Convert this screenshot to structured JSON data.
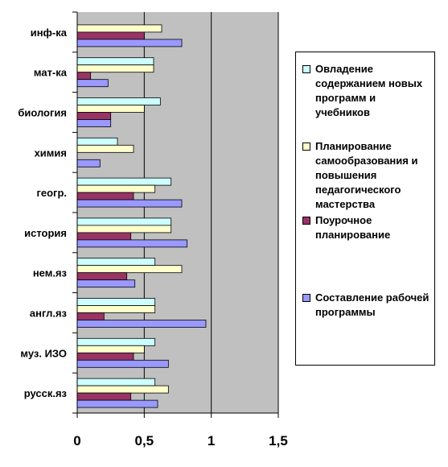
{
  "chart_data": {
    "type": "bar",
    "orientation": "horizontal",
    "categories": [
      "инф-ка",
      "мат-ка",
      "биология",
      "химия",
      "геогр.",
      "история",
      "нем.яз",
      "англ.яз",
      "муз. ИЗО",
      "русск.яз"
    ],
    "series": [
      {
        "name": "Овладение содержанием новых программ и учебников",
        "color": "#ccffff",
        "values": [
          0.0,
          0.57,
          0.62,
          0.3,
          0.7,
          0.7,
          0.58,
          0.58,
          0.58,
          0.58
        ]
      },
      {
        "name": "Планирование самообразования и повышения педагогического мастерства",
        "color": "#ffffcc",
        "values": [
          0.63,
          0.57,
          0.5,
          0.42,
          0.58,
          0.7,
          0.78,
          0.58,
          0.5,
          0.68
        ]
      },
      {
        "name": "Поурочное планирование",
        "color": "#993366",
        "values": [
          0.5,
          0.1,
          0.25,
          0.0,
          0.42,
          0.4,
          0.37,
          0.2,
          0.42,
          0.4
        ]
      },
      {
        "name": "Составление рабочей программы",
        "color": "#9999ff",
        "values": [
          0.78,
          0.23,
          0.25,
          0.17,
          0.78,
          0.82,
          0.43,
          0.96,
          0.68,
          0.6
        ]
      }
    ],
    "xlim": [
      0,
      1.5
    ],
    "x_ticks": [
      "0",
      "0,5",
      "1",
      "1,5"
    ],
    "grid": true,
    "legend_position": "right",
    "plot_background": "#c0c0c0",
    "title": "",
    "xlabel": "",
    "ylabel": ""
  }
}
